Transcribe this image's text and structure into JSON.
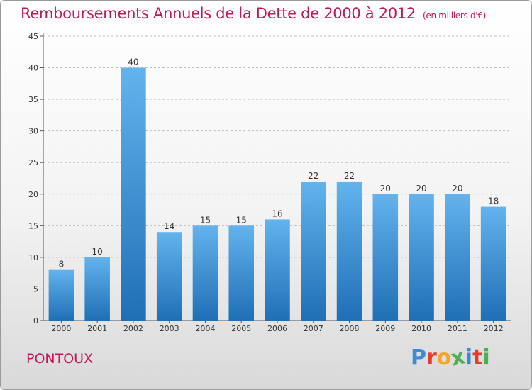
{
  "header": {
    "title": "Remboursements Annuels de la Dette de 2000 à 2012",
    "subtitle": "(en milliers d'€)"
  },
  "footer": {
    "commune": "PONTOUX",
    "brand": "Proxiti",
    "brand_colors": [
      "#3a8ad6",
      "#e63b2e",
      "#f5a623",
      "#4caf50",
      "#3a8ad6",
      "#e63b2e",
      "#4caf50"
    ]
  },
  "colors": {
    "title": "#c2185b",
    "bar_light": "#63b3ee",
    "bar_dark": "#1f6fb5",
    "grid": "#bfbfbf"
  },
  "chart_data": {
    "type": "bar",
    "title": "Remboursements Annuels de la Dette de 2000 à 2012",
    "subtitle": "(en milliers d'€)",
    "categories": [
      "2000",
      "2001",
      "2002",
      "2003",
      "2004",
      "2005",
      "2006",
      "2007",
      "2008",
      "2009",
      "2010",
      "2011",
      "2012"
    ],
    "values": [
      8,
      10,
      40,
      14,
      15,
      15,
      16,
      22,
      22,
      20,
      20,
      20,
      18
    ],
    "ylim": [
      0,
      45
    ],
    "yticks": [
      0,
      5,
      10,
      15,
      20,
      25,
      30,
      35,
      40,
      45
    ],
    "grid": "horizontal-dashed",
    "data_labels": true,
    "legend": "none"
  }
}
